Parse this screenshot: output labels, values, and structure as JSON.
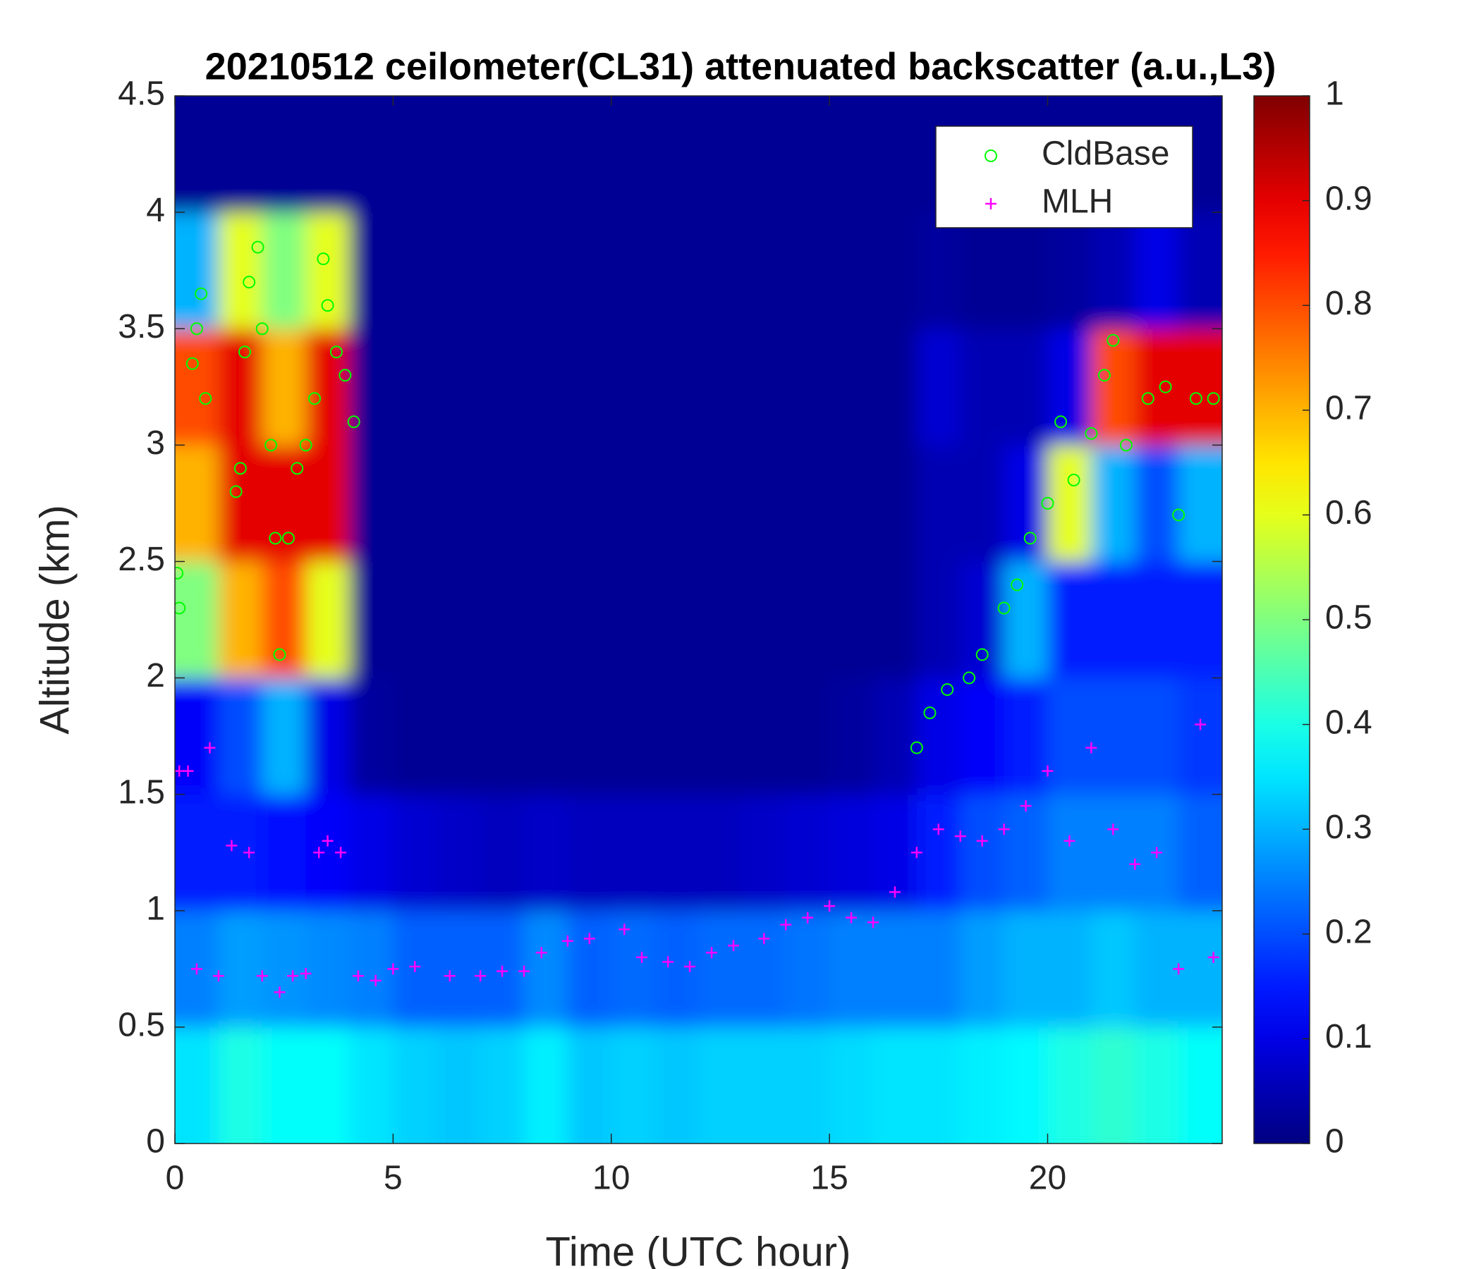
{
  "chart_data": {
    "type": "heatmap",
    "title": "20210512 ceilometer(CL31) attenuated backscatter (a.u.,L3)",
    "xlabel": "Time (UTC hour)",
    "ylabel": "Altitude (km)",
    "xlim": [
      0,
      24
    ],
    "xticks": [
      0,
      5,
      10,
      15,
      20
    ],
    "ylim": [
      0,
      4.5
    ],
    "yticks": [
      0,
      0.5,
      1,
      1.5,
      2,
      2.5,
      3,
      3.5,
      4,
      4.5
    ],
    "clim": [
      0,
      1
    ],
    "cticks": [
      0,
      0.1,
      0.2,
      0.3,
      0.4,
      0.5,
      0.6,
      0.7,
      0.8,
      0.9,
      1
    ],
    "colormap": "jet",
    "legend": "upper right",
    "x": [
      0.5,
      1.5,
      2.5,
      3.5,
      4.5,
      5.5,
      6.5,
      7.5,
      8.5,
      9.5,
      10.5,
      11.5,
      12.5,
      13.5,
      14.5,
      15.5,
      16.5,
      17.5,
      18.5,
      19.5,
      20.5,
      21.5,
      22.5,
      23.5
    ],
    "y": [
      0.25,
      0.75,
      1.25,
      1.75,
      2.25,
      2.75,
      3.25,
      3.75,
      4.25
    ],
    "z": [
      [
        0.35,
        0.25,
        0.15,
        0.12,
        0.5,
        0.7,
        0.8,
        0.3,
        0.02
      ],
      [
        0.4,
        0.28,
        0.15,
        0.2,
        0.7,
        0.9,
        0.9,
        0.6,
        0.02
      ],
      [
        0.38,
        0.27,
        0.14,
        0.3,
        0.8,
        0.9,
        0.7,
        0.5,
        0.02
      ],
      [
        0.38,
        0.26,
        0.12,
        0.1,
        0.6,
        0.9,
        0.9,
        0.6,
        0.02
      ],
      [
        0.35,
        0.25,
        0.1,
        0.03,
        0.02,
        0.02,
        0.02,
        0.02,
        0.02
      ],
      [
        0.33,
        0.22,
        0.08,
        0.02,
        0.02,
        0.02,
        0.02,
        0.02,
        0.02
      ],
      [
        0.32,
        0.22,
        0.07,
        0.02,
        0.02,
        0.02,
        0.02,
        0.02,
        0.02
      ],
      [
        0.33,
        0.22,
        0.06,
        0.02,
        0.02,
        0.02,
        0.02,
        0.02,
        0.02
      ],
      [
        0.36,
        0.26,
        0.07,
        0.02,
        0.02,
        0.02,
        0.02,
        0.02,
        0.02
      ],
      [
        0.32,
        0.22,
        0.06,
        0.02,
        0.02,
        0.02,
        0.02,
        0.02,
        0.02
      ],
      [
        0.33,
        0.23,
        0.06,
        0.02,
        0.02,
        0.02,
        0.02,
        0.02,
        0.02
      ],
      [
        0.32,
        0.22,
        0.06,
        0.02,
        0.02,
        0.02,
        0.02,
        0.02,
        0.02
      ],
      [
        0.33,
        0.23,
        0.06,
        0.02,
        0.02,
        0.02,
        0.02,
        0.02,
        0.02
      ],
      [
        0.33,
        0.23,
        0.07,
        0.02,
        0.02,
        0.02,
        0.02,
        0.02,
        0.02
      ],
      [
        0.33,
        0.24,
        0.08,
        0.02,
        0.02,
        0.02,
        0.02,
        0.02,
        0.02
      ],
      [
        0.34,
        0.25,
        0.09,
        0.03,
        0.02,
        0.02,
        0.02,
        0.02,
        0.02
      ],
      [
        0.35,
        0.25,
        0.1,
        0.05,
        0.02,
        0.02,
        0.02,
        0.02,
        0.02
      ],
      [
        0.35,
        0.25,
        0.15,
        0.1,
        0.05,
        0.05,
        0.08,
        0.03,
        0.02
      ],
      [
        0.36,
        0.28,
        0.2,
        0.12,
        0.08,
        0.05,
        0.05,
        0.02,
        0.02
      ],
      [
        0.37,
        0.3,
        0.22,
        0.15,
        0.3,
        0.1,
        0.05,
        0.02,
        0.02
      ],
      [
        0.4,
        0.3,
        0.25,
        0.2,
        0.15,
        0.6,
        0.1,
        0.03,
        0.02
      ],
      [
        0.42,
        0.32,
        0.25,
        0.2,
        0.15,
        0.3,
        0.8,
        0.05,
        0.02
      ],
      [
        0.4,
        0.3,
        0.25,
        0.2,
        0.15,
        0.2,
        0.9,
        0.1,
        0.02
      ],
      [
        0.38,
        0.3,
        0.22,
        0.18,
        0.15,
        0.3,
        0.9,
        0.05,
        0.02
      ]
    ],
    "series": [
      {
        "name": "CldBase",
        "color": "#00ff00",
        "marker": "circle",
        "x": [
          0.05,
          0.1,
          0.4,
          0.5,
          0.6,
          0.7,
          1.4,
          1.5,
          1.6,
          1.7,
          1.9,
          2.0,
          2.2,
          2.3,
          2.4,
          2.6,
          2.8,
          3.0,
          3.2,
          3.4,
          3.5,
          3.7,
          3.9,
          4.1,
          17.0,
          17.3,
          17.7,
          18.2,
          18.5,
          19.0,
          19.3,
          19.6,
          20.0,
          20.3,
          20.6,
          21.0,
          21.3,
          21.5,
          21.8,
          22.3,
          22.7,
          23.0,
          23.4,
          23.8
        ],
        "values": [
          2.45,
          2.3,
          3.35,
          3.5,
          3.65,
          3.2,
          2.8,
          2.9,
          3.4,
          3.7,
          3.85,
          3.5,
          3.0,
          2.6,
          2.1,
          2.6,
          2.9,
          3.0,
          3.2,
          3.8,
          3.6,
          3.4,
          3.3,
          3.1,
          1.7,
          1.85,
          1.95,
          2.0,
          2.1,
          2.3,
          2.4,
          2.6,
          2.75,
          3.1,
          2.85,
          3.05,
          3.3,
          3.45,
          3.0,
          3.2,
          3.25,
          2.7,
          3.2,
          3.2
        ]
      },
      {
        "name": "MLH",
        "color": "#ff00ff",
        "marker": "plus",
        "x": [
          0.1,
          0.3,
          0.5,
          0.8,
          1.0,
          1.3,
          1.7,
          2.0,
          2.4,
          2.7,
          3.0,
          3.3,
          3.5,
          3.8,
          4.2,
          4.6,
          5.0,
          5.5,
          6.3,
          7.0,
          7.5,
          8.0,
          8.4,
          9.0,
          9.5,
          10.3,
          10.7,
          11.3,
          11.8,
          12.3,
          12.8,
          13.5,
          14.0,
          14.5,
          15.0,
          15.5,
          16.0,
          16.5,
          17.0,
          17.5,
          18.0,
          18.5,
          19.0,
          19.5,
          20.0,
          20.5,
          21.0,
          21.5,
          22.0,
          22.5,
          23.0,
          23.5,
          23.8
        ],
        "values": [
          1.6,
          1.6,
          0.75,
          1.7,
          0.72,
          1.28,
          1.25,
          0.72,
          0.65,
          0.72,
          0.73,
          1.25,
          1.3,
          1.25,
          0.72,
          0.7,
          0.75,
          0.76,
          0.72,
          0.72,
          0.74,
          0.74,
          0.82,
          0.87,
          0.88,
          0.92,
          0.8,
          0.78,
          0.76,
          0.82,
          0.85,
          0.88,
          0.94,
          0.97,
          1.02,
          0.97,
          0.95,
          1.08,
          1.25,
          1.35,
          1.32,
          1.3,
          1.35,
          1.45,
          1.6,
          1.3,
          1.7,
          1.35,
          1.2,
          1.25,
          0.75,
          1.8,
          0.8
        ]
      }
    ]
  }
}
